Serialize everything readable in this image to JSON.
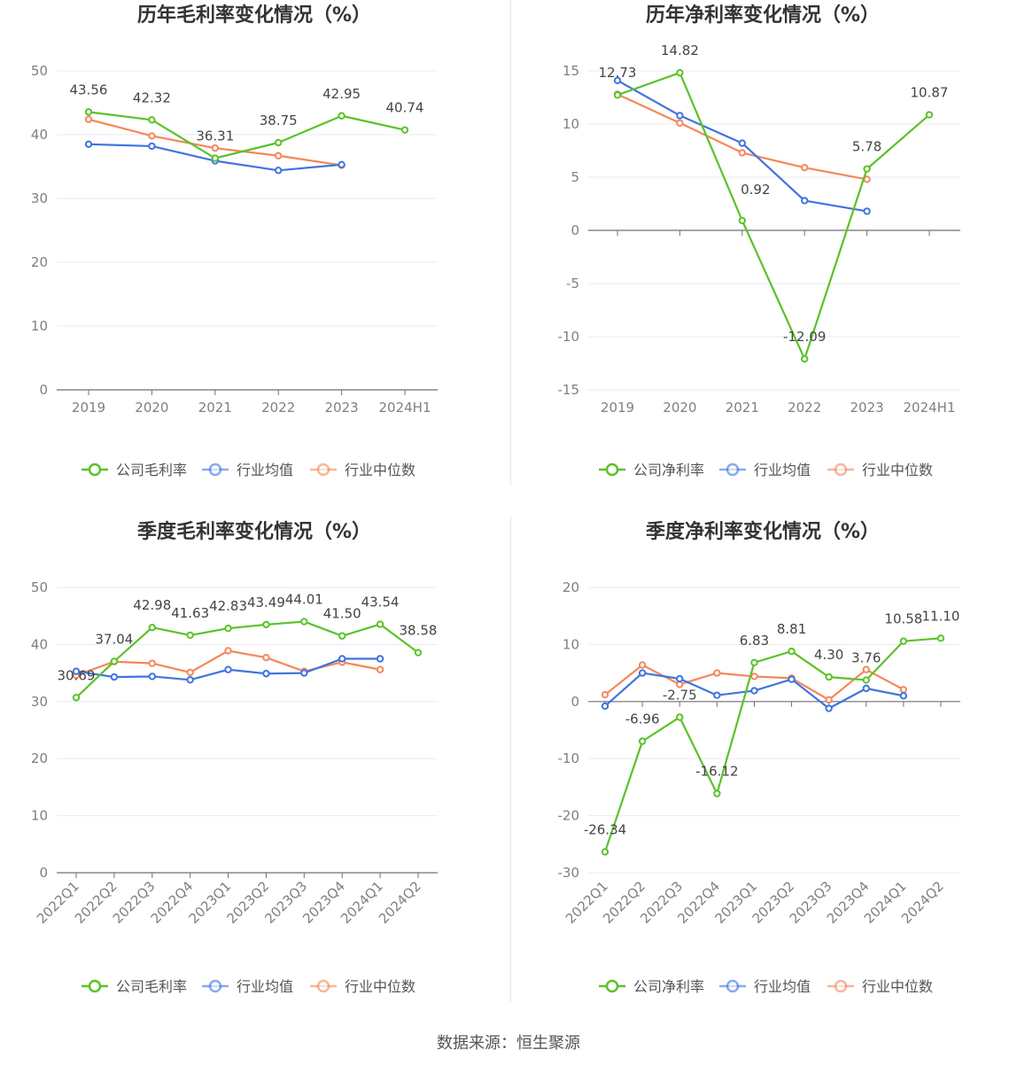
{
  "colors": {
    "company": "#5ac229",
    "avg": "#3f74df",
    "median": "#f5875a",
    "grid": "#e8ebf3",
    "axis": "#6f6f6f"
  },
  "legend_labels": {
    "company_gross": "公司毛利率",
    "company_net": "公司净利率",
    "avg": "行业均值",
    "median": "行业中位数"
  },
  "source_text": "数据来源：恒生聚源",
  "chart_data": [
    {
      "type": "line",
      "title": "历年毛利率变化情况（%）",
      "categories": [
        "2019",
        "2020",
        "2021",
        "2022",
        "2023",
        "2024H1"
      ],
      "ylim": [
        0,
        50
      ],
      "yticks": [
        0,
        10,
        20,
        30,
        40,
        50
      ],
      "legend": [
        "公司毛利率",
        "行业均值",
        "行业中位数"
      ],
      "series": [
        {
          "name": "公司毛利率",
          "values": [
            43.56,
            42.32,
            36.31,
            38.75,
            42.95,
            40.74
          ],
          "labels": true
        },
        {
          "name": "行业均值",
          "values": [
            38.5,
            38.2,
            35.9,
            34.4,
            35.3,
            null
          ]
        },
        {
          "name": "行业中位数",
          "values": [
            42.4,
            39.8,
            37.9,
            36.7,
            35.2,
            null
          ]
        }
      ]
    },
    {
      "type": "line",
      "title": "历年净利率变化情况（%）",
      "categories": [
        "2019",
        "2020",
        "2021",
        "2022",
        "2023",
        "2024H1"
      ],
      "ylim": [
        -15,
        15
      ],
      "yticks": [
        -15,
        -10,
        -5,
        0,
        5,
        10,
        15
      ],
      "legend": [
        "公司净利率",
        "行业均值",
        "行业中位数"
      ],
      "series": [
        {
          "name": "公司净利率",
          "values": [
            12.73,
            14.82,
            0.92,
            -12.09,
            5.78,
            10.87
          ],
          "labels": true
        },
        {
          "name": "行业均值",
          "values": [
            14.1,
            10.8,
            8.2,
            2.8,
            1.8,
            null
          ]
        },
        {
          "name": "行业中位数",
          "values": [
            12.8,
            10.1,
            7.3,
            5.9,
            4.8,
            null
          ]
        }
      ]
    },
    {
      "type": "line",
      "title": "季度毛利率变化情况（%）",
      "categories": [
        "2022Q1",
        "2022Q2",
        "2022Q3",
        "2022Q4",
        "2023Q1",
        "2023Q2",
        "2023Q3",
        "2023Q4",
        "2024Q1",
        "2024Q2"
      ],
      "ylim": [
        0,
        50
      ],
      "yticks": [
        0,
        10,
        20,
        30,
        40,
        50
      ],
      "legend": [
        "公司毛利率",
        "行业均值",
        "行业中位数"
      ],
      "series": [
        {
          "name": "公司毛利率",
          "values": [
            30.69,
            37.04,
            42.98,
            41.63,
            42.83,
            43.49,
            44.01,
            41.5,
            43.54,
            38.58
          ],
          "labels": true
        },
        {
          "name": "行业均值",
          "values": [
            35.3,
            34.3,
            34.4,
            33.8,
            35.6,
            34.9,
            35.0,
            37.5,
            37.5,
            null
          ]
        },
        {
          "name": "行业中位数",
          "values": [
            34.6,
            37.0,
            36.7,
            35.1,
            38.9,
            37.7,
            35.3,
            36.9,
            35.6,
            null
          ]
        }
      ]
    },
    {
      "type": "line",
      "title": "季度净利率变化情况（%）",
      "categories": [
        "2022Q1",
        "2022Q2",
        "2022Q3",
        "2022Q4",
        "2023Q1",
        "2023Q2",
        "2023Q3",
        "2023Q4",
        "2024Q1",
        "2024Q2"
      ],
      "ylim": [
        -30,
        20
      ],
      "yticks": [
        -30,
        -20,
        -10,
        0,
        10,
        20
      ],
      "legend": [
        "公司净利率",
        "行业均值",
        "行业中位数"
      ],
      "series": [
        {
          "name": "公司净利率",
          "values": [
            -26.34,
            -6.96,
            -2.75,
            -16.12,
            6.83,
            8.81,
            4.3,
            3.76,
            10.58,
            11.1
          ],
          "labels": true
        },
        {
          "name": "行业均值",
          "values": [
            -0.8,
            5.0,
            4.0,
            1.1,
            1.9,
            3.9,
            -1.2,
            2.3,
            1.0,
            null
          ]
        },
        {
          "name": "行业中位数",
          "values": [
            1.2,
            6.4,
            3.0,
            5.0,
            4.4,
            4.1,
            0.3,
            5.6,
            2.1,
            null
          ]
        }
      ]
    }
  ]
}
